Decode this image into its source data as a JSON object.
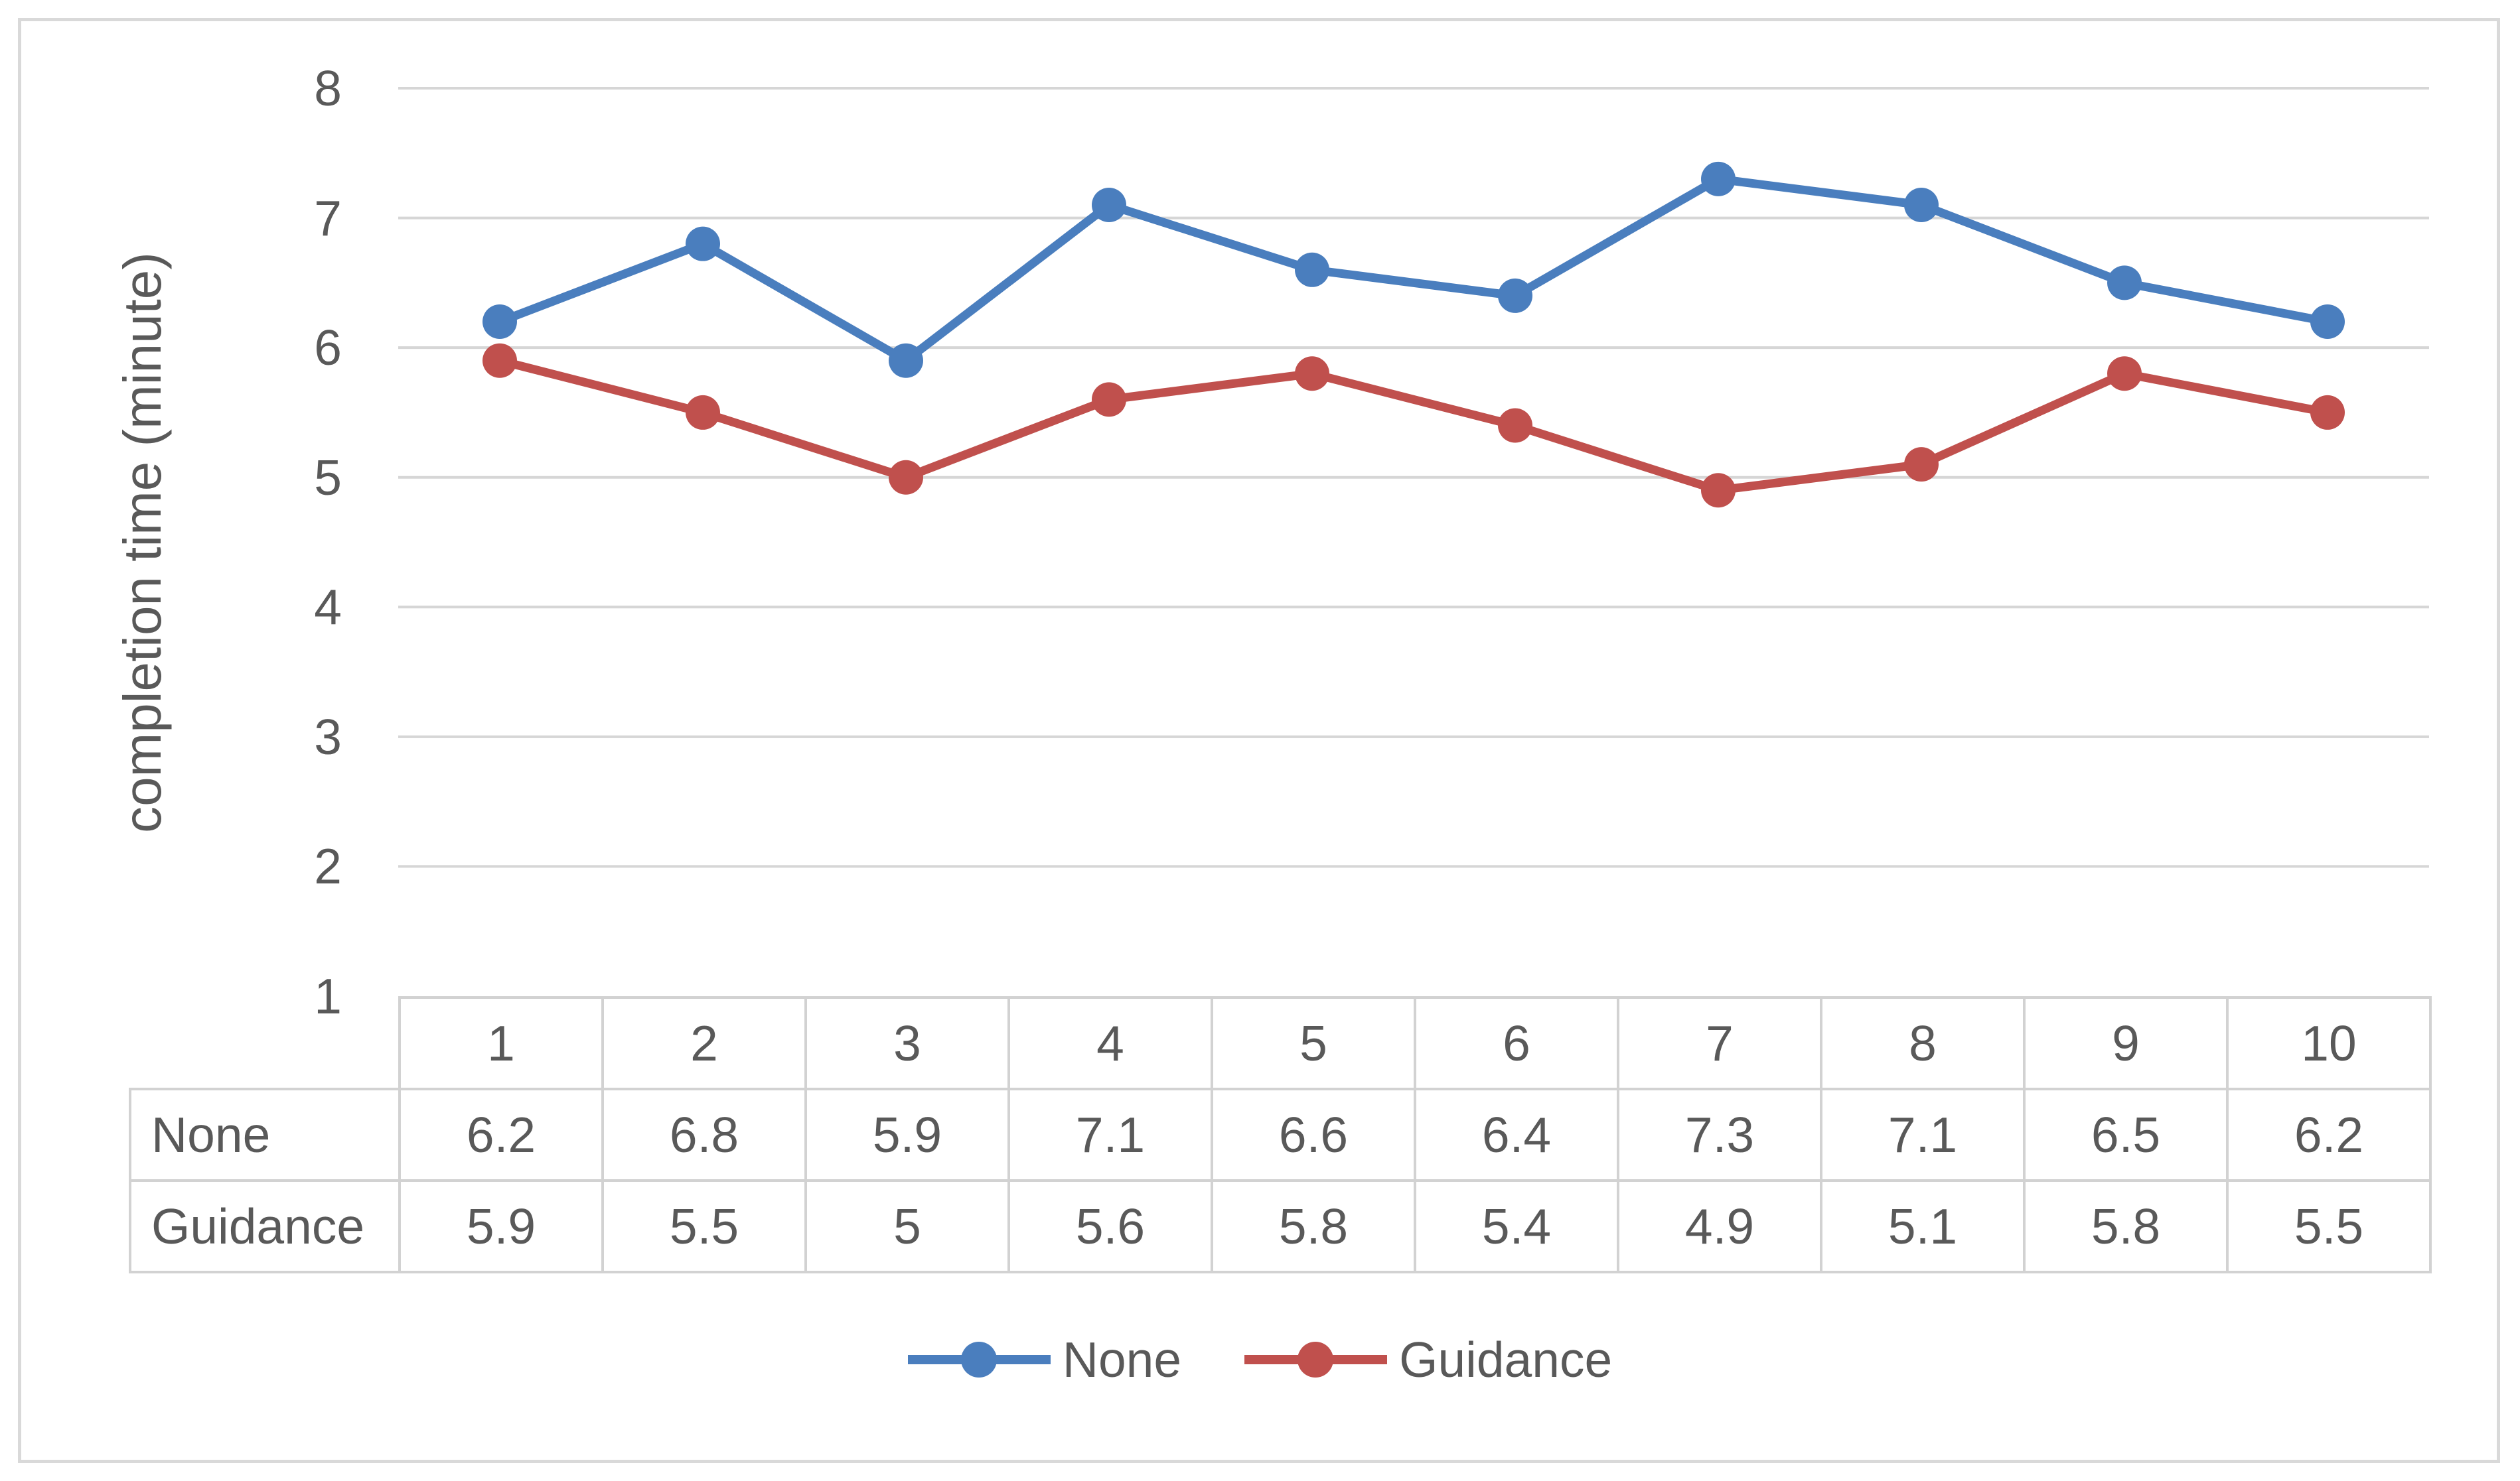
{
  "chart_data": {
    "type": "line",
    "title": "",
    "xlabel": "",
    "ylabel": "completion time (minute)",
    "categories": [
      1,
      2,
      3,
      4,
      5,
      6,
      7,
      8,
      9,
      10
    ],
    "series": [
      {
        "name": "None",
        "color": "#4a7ebe",
        "values": [
          6.2,
          6.8,
          5.9,
          7.1,
          6.6,
          6.4,
          7.3,
          7.1,
          6.5,
          6.2
        ]
      },
      {
        "name": "Guidance",
        "color": "#c0504d",
        "values": [
          5.9,
          5.5,
          5,
          5.6,
          5.8,
          5.4,
          4.9,
          5.1,
          5.8,
          5.5
        ]
      }
    ],
    "ylim": [
      1,
      8
    ],
    "yticks": [
      1,
      2,
      3,
      4,
      5,
      6,
      7,
      8
    ],
    "grid": true,
    "legend_position": "bottom",
    "data_table": true,
    "marker": "circle"
  },
  "colors": {
    "grid": "#d6d6d6",
    "table_border": "#d2d2d2",
    "frame_border": "#d9d9d9",
    "text": "#595959",
    "background": "#ffffff"
  }
}
